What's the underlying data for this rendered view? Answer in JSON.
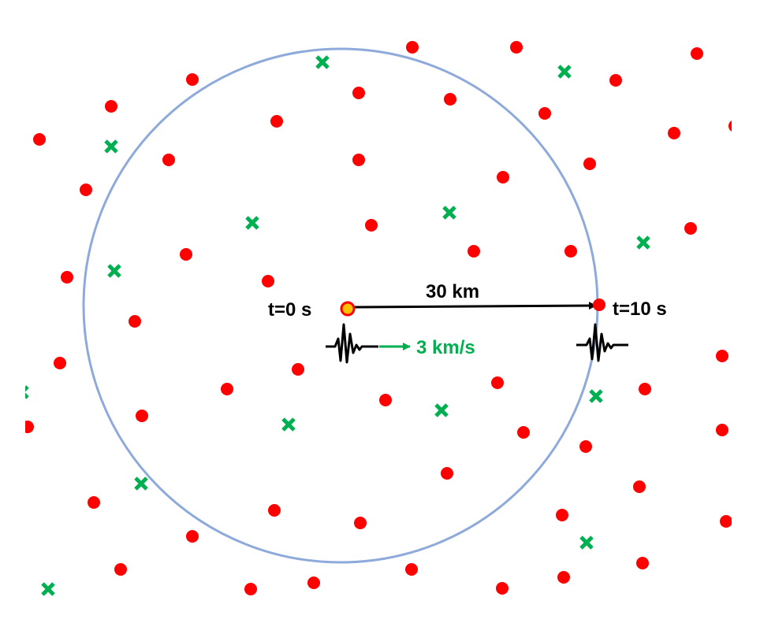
{
  "labels": {
    "distance": "30 km",
    "start_time": "t=0 s",
    "end_time": "t=10 s",
    "speed": "3 km/s"
  },
  "colors": {
    "circle": "#8eaadb",
    "station_dot": "#ff0000",
    "epicenter_fill": "#ffc000",
    "cross_marker": "#00b050",
    "arrow": "#000000",
    "speed_text": "#00b050",
    "text": "#000000"
  },
  "icons": {
    "red_marker": "filled-circle",
    "green_marker": "cross-x",
    "epicenter": "outlined-circle",
    "waveform": "seismogram-squiggle"
  }
}
